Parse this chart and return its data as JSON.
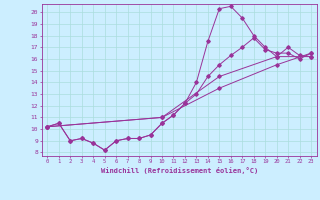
{
  "xlabel": "Windchill (Refroidissement éolien,°C)",
  "bg_color": "#cceeff",
  "grid_color": "#aadddd",
  "line_color": "#993399",
  "xlim": [
    -0.5,
    23.5
  ],
  "ylim": [
    7.7,
    20.7
  ],
  "xticks": [
    0,
    1,
    2,
    3,
    4,
    5,
    6,
    7,
    8,
    9,
    10,
    11,
    12,
    13,
    14,
    15,
    16,
    17,
    18,
    19,
    20,
    21,
    22,
    23
  ],
  "yticks": [
    8,
    9,
    10,
    11,
    12,
    13,
    14,
    15,
    16,
    17,
    18,
    19,
    20
  ],
  "line1_x": [
    0,
    1,
    2,
    3,
    4,
    5,
    6,
    7,
    8,
    9,
    10,
    11,
    12,
    13,
    14,
    15,
    16,
    17,
    18,
    19,
    20,
    21,
    22,
    23
  ],
  "line1_y": [
    10.2,
    10.5,
    9.0,
    9.2,
    8.8,
    8.2,
    9.0,
    9.2,
    9.2,
    9.5,
    10.5,
    11.2,
    12.2,
    14.0,
    17.5,
    20.3,
    20.5,
    19.5,
    18.0,
    17.0,
    16.2,
    17.0,
    16.3,
    16.2
  ],
  "line2_x": [
    0,
    1,
    2,
    3,
    4,
    5,
    6,
    7,
    8,
    9,
    10,
    11,
    12,
    13,
    14,
    15,
    16,
    17,
    18,
    19,
    20,
    21,
    22,
    23
  ],
  "line2_y": [
    10.2,
    10.5,
    9.0,
    9.2,
    8.8,
    8.2,
    9.0,
    9.2,
    9.2,
    9.5,
    10.5,
    11.2,
    12.2,
    13.0,
    14.5,
    15.5,
    16.3,
    17.0,
    17.8,
    16.8,
    16.5,
    16.5,
    16.0,
    16.5
  ],
  "line3_x": [
    0,
    10,
    15,
    20,
    23
  ],
  "line3_y": [
    10.2,
    11.0,
    13.5,
    15.5,
    16.5
  ],
  "line4_x": [
    0,
    10,
    15,
    20,
    23
  ],
  "line4_y": [
    10.2,
    11.0,
    14.5,
    16.2,
    16.2
  ]
}
